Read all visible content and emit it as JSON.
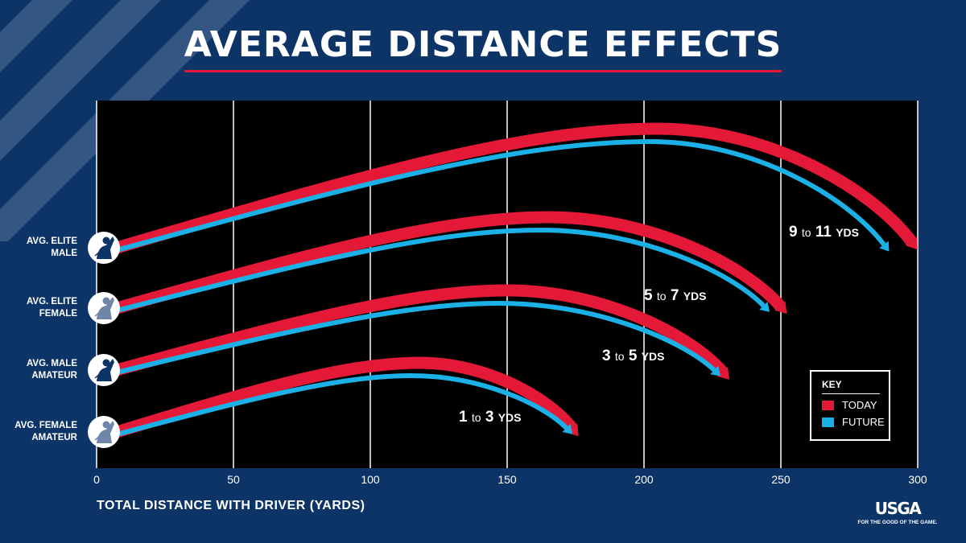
{
  "title": "AVERAGE DISTANCE EFFECTS",
  "colors": {
    "background": "#0d3466",
    "plot": "#000000",
    "today": "#e31937",
    "future": "#1bb1e7",
    "accent": "#e31937"
  },
  "chart_data": {
    "type": "line",
    "title": "AVERAGE DISTANCE EFFECTS",
    "xlabel": "TOTAL DISTANCE WITH DRIVER (YARDS)",
    "xlim": [
      0,
      300
    ],
    "xticks": [
      "0",
      "50",
      "100",
      "150",
      "200",
      "250",
      "300"
    ],
    "grid": "vertical",
    "legend": {
      "title": "KEY",
      "placement": "bottom-right",
      "entries": [
        {
          "name": "TODAY",
          "color": "#e31937"
        },
        {
          "name": "FUTURE",
          "color": "#1bb1e7"
        }
      ]
    },
    "golfers": [
      {
        "label": [
          "AVG. ELITE",
          "MALE"
        ],
        "today_yds": 300,
        "future_yds": 290,
        "apex_yds": 205,
        "effect": {
          "low": "9",
          "to": "to",
          "high": "11",
          "unit": "YDS"
        }
      },
      {
        "label": [
          "AVG. ELITE",
          "FEMALE"
        ],
        "today_yds": 252,
        "future_yds": 246,
        "apex_yds": 165,
        "effect": {
          "low": "5",
          "to": "to",
          "high": "7",
          "unit": "YDS"
        }
      },
      {
        "label": [
          "AVG. MALE",
          "AMATEUR"
        ],
        "today_yds": 231,
        "future_yds": 228,
        "apex_yds": 150,
        "effect": {
          "low": "3",
          "to": "to",
          "high": "5",
          "unit": "YDS"
        }
      },
      {
        "label": [
          "AVG. FEMALE",
          "AMATEUR"
        ],
        "today_yds": 176,
        "future_yds": 174,
        "apex_yds": 118,
        "effect": {
          "low": "1",
          "to": "to",
          "high": "3",
          "unit": "YDS"
        }
      }
    ]
  },
  "logo": {
    "mark": "USGA",
    "tagline": "FOR THE GOOD OF THE GAME."
  }
}
